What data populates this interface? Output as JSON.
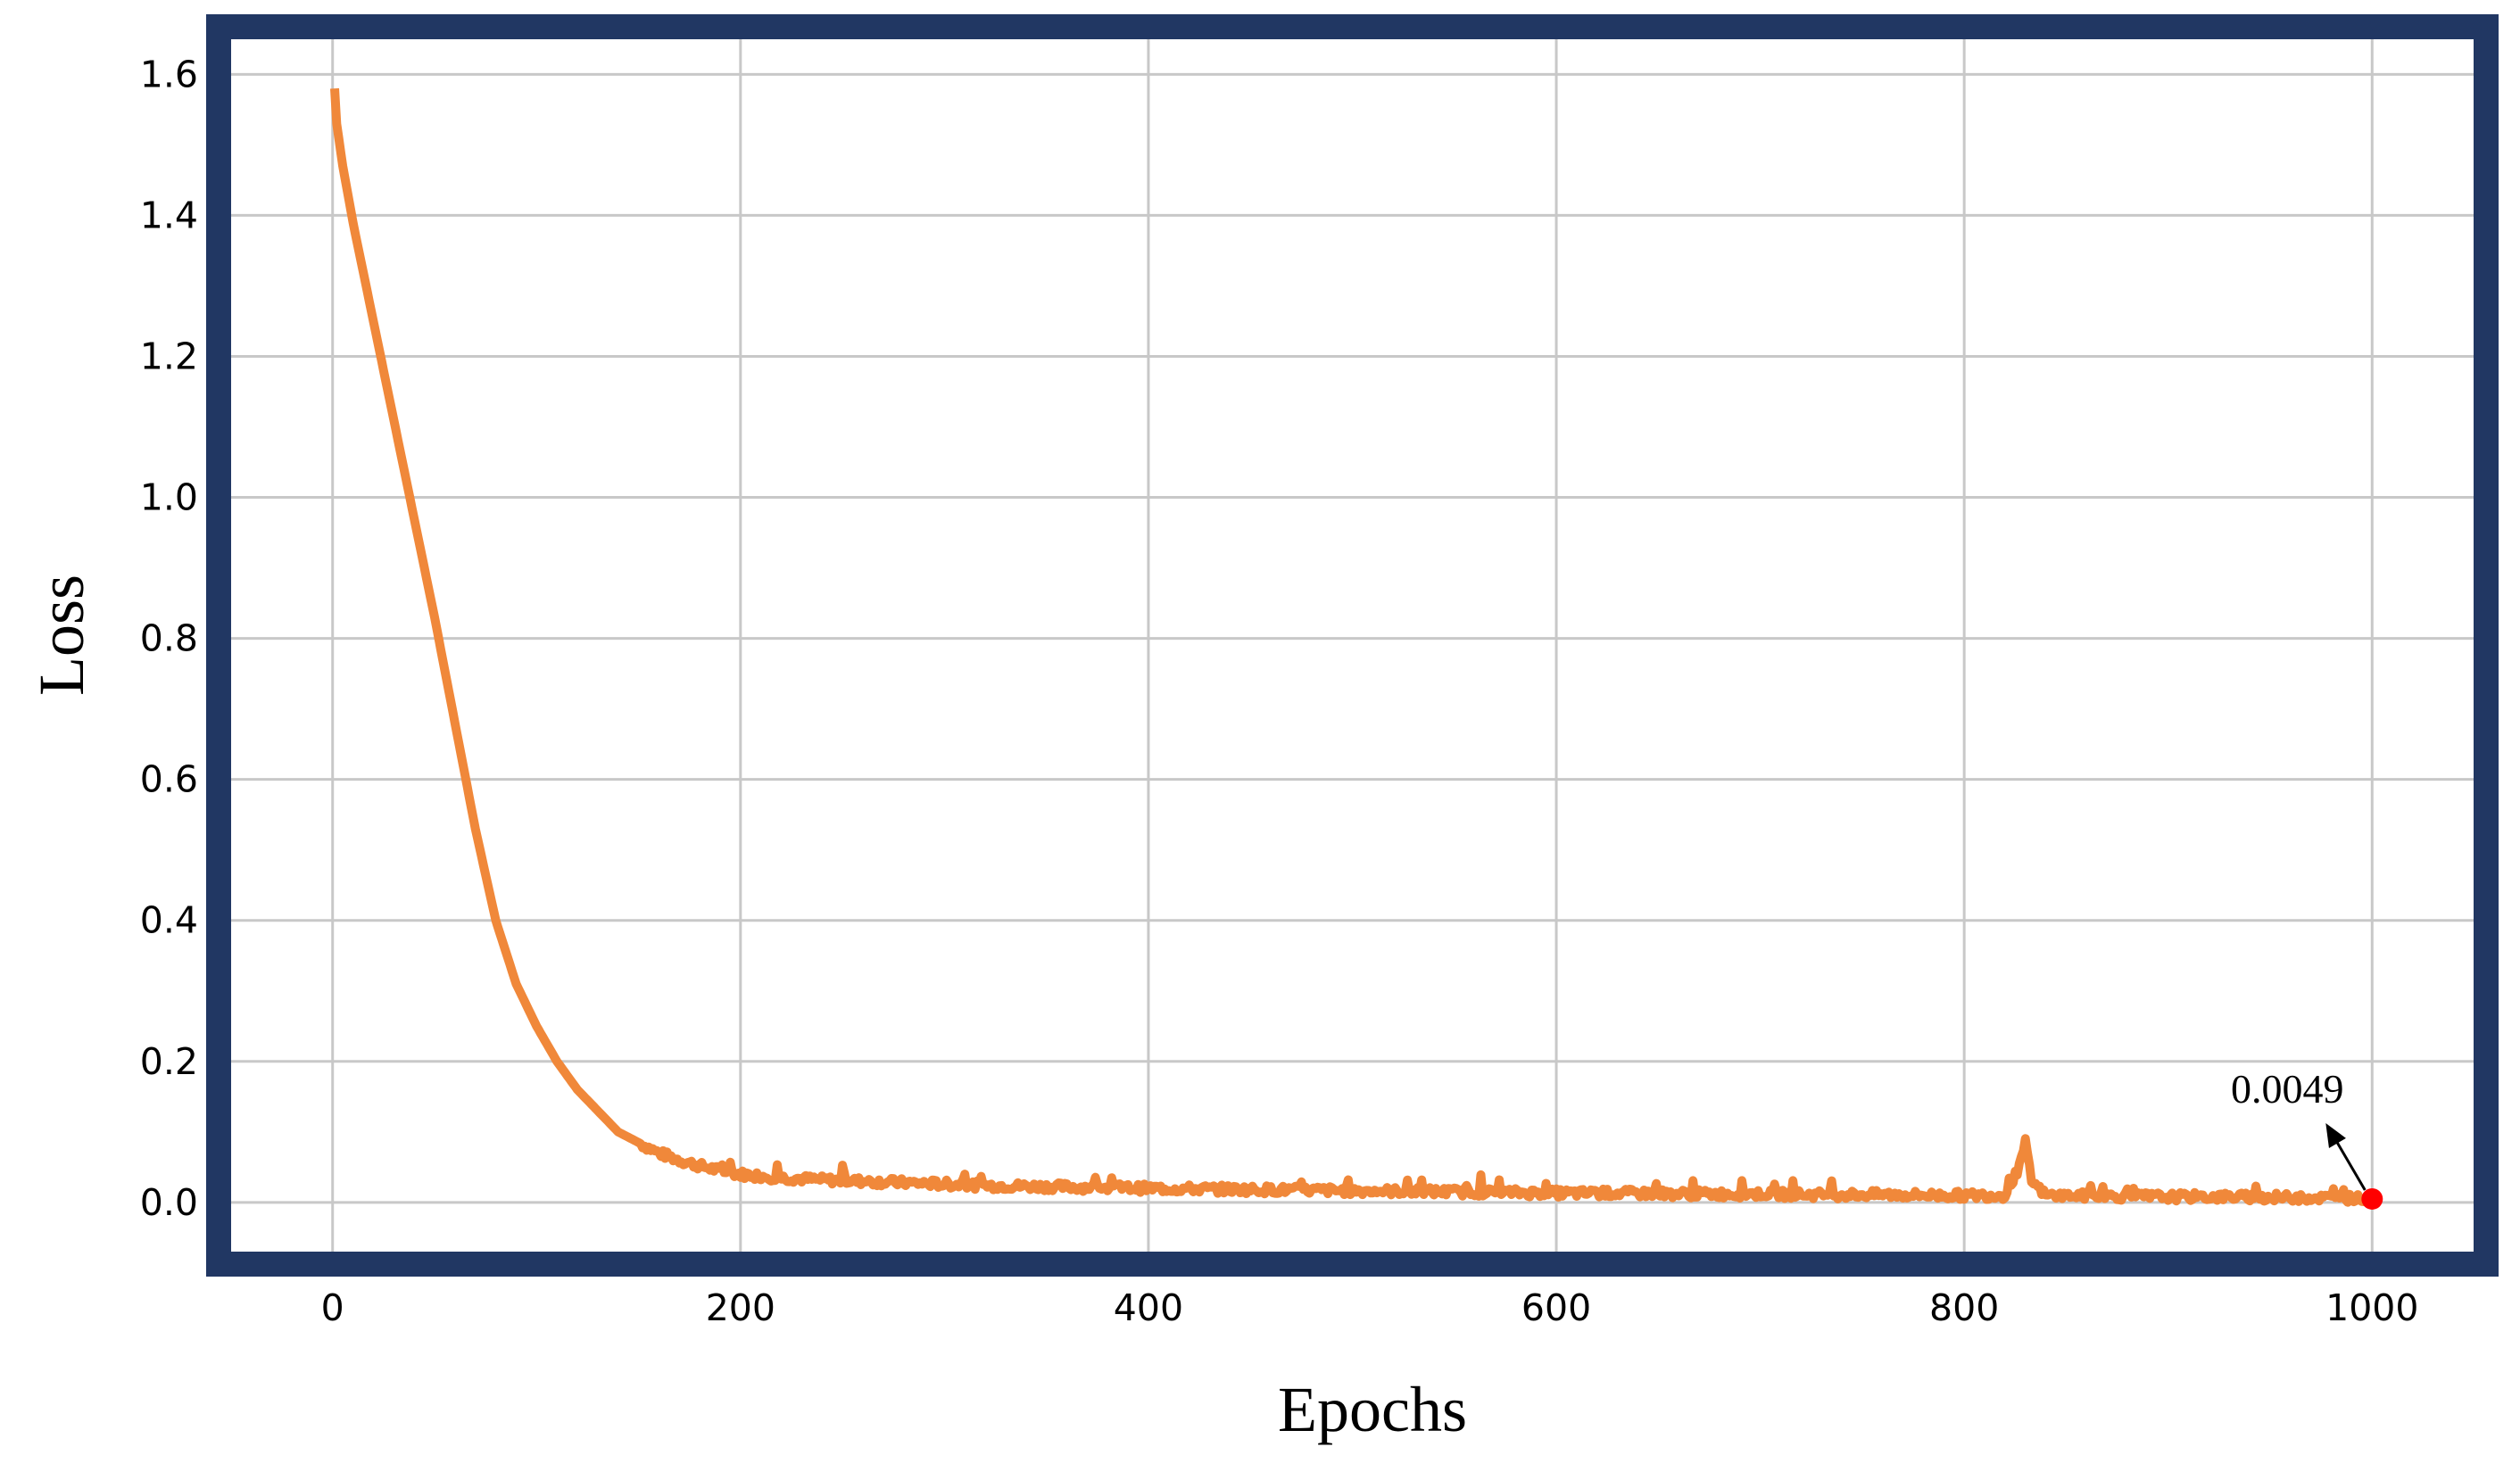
{
  "chart_data": {
    "type": "line",
    "title": "",
    "xlabel": "Epochs",
    "ylabel": "Loss",
    "xlim": [
      -55,
      1055
    ],
    "ylim": [
      -0.085,
      1.665
    ],
    "x_ticks": [
      0,
      200,
      400,
      600,
      800,
      1000
    ],
    "x_tick_labels": [
      "0",
      "200",
      "400",
      "600",
      "800",
      "1000"
    ],
    "y_ticks": [
      0.0,
      0.2,
      0.4,
      0.6,
      0.8,
      1.0,
      1.2,
      1.4,
      1.6
    ],
    "y_tick_labels": [
      "0.0",
      "0.2",
      "0.4",
      "0.6",
      "0.8",
      "1.0",
      "1.2",
      "1.4",
      "1.6"
    ],
    "grid": true,
    "legend": "none",
    "series": [
      {
        "color": "#f0883a",
        "x": [
          1,
          2,
          5,
          10,
          20,
          30,
          40,
          50,
          60,
          70,
          80,
          90,
          100,
          110,
          120,
          130,
          140,
          150,
          160,
          170,
          180,
          190,
          200,
          220,
          240,
          260,
          280,
          300,
          320,
          340,
          360,
          380,
          400,
          430,
          460,
          490,
          520,
          550,
          580,
          610,
          640,
          670,
          700,
          730,
          760,
          790,
          800,
          820,
          827,
          830,
          833,
          840,
          870,
          900,
          930,
          960,
          990,
          1000
        ],
        "y": [
          1.58,
          1.53,
          1.47,
          1.39,
          1.25,
          1.11,
          0.97,
          0.83,
          0.68,
          0.53,
          0.4,
          0.31,
          0.25,
          0.2,
          0.16,
          0.13,
          0.1,
          0.085,
          0.07,
          0.06,
          0.052,
          0.045,
          0.04,
          0.035,
          0.032,
          0.03,
          0.028,
          0.026,
          0.024,
          0.023,
          0.022,
          0.021,
          0.02,
          0.019,
          0.018,
          0.017,
          0.016,
          0.015,
          0.014,
          0.013,
          0.013,
          0.012,
          0.012,
          0.011,
          0.011,
          0.01,
          0.01,
          0.01,
          0.05,
          0.085,
          0.03,
          0.01,
          0.009,
          0.008,
          0.008,
          0.007,
          0.006,
          0.0049
        ]
      }
    ],
    "annotation": {
      "text": "0.0049",
      "x": 1000,
      "y": 0.0049,
      "marker_color": "#ff0000"
    }
  },
  "colors": {
    "frame": "#213763",
    "grid": "#c8c8c8",
    "line": "#f0883a",
    "marker": "#ff0000"
  }
}
